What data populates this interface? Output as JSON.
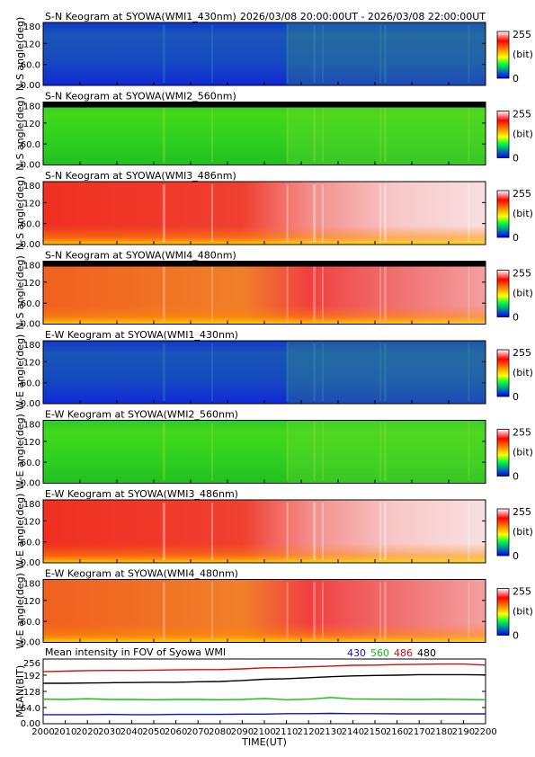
{
  "header": {
    "time_range": "2026/03/08 20:00:00UT - 2026/03/08 22:00:00UT"
  },
  "colorbar": {
    "max_label": "255",
    "unit_label": "(bit)",
    "min_label": "0"
  },
  "chart_data": [
    {
      "type": "heatmap",
      "title": "S-N Keogram at SYOWA(WMI1_430nm)",
      "ylabel": "N-S angle(deg)",
      "ylim": [
        0,
        180
      ],
      "yticks": [
        "180",
        "120",
        "60.0",
        "0.00"
      ],
      "base": "blue",
      "colormap": "rainbow",
      "vmin": 0,
      "vmax": 255
    },
    {
      "type": "heatmap",
      "title": "S-N Keogram at SYOWA(WMI2_560nm)",
      "ylabel": "N-S angle(deg)",
      "ylim": [
        0,
        180
      ],
      "yticks": [
        "180",
        "120",
        "60.0",
        "0.00"
      ],
      "base": "green",
      "colormap": "rainbow",
      "vmin": 0,
      "vmax": 255
    },
    {
      "type": "heatmap",
      "title": "S-N Keogram at SYOWA(WMI3_486nm)",
      "ylabel": "N-S angle(deg)",
      "ylim": [
        0,
        180
      ],
      "yticks": [
        "180",
        "120",
        "60.0",
        "0.00"
      ],
      "base": "red-white",
      "colormap": "rainbow",
      "vmin": 0,
      "vmax": 255
    },
    {
      "type": "heatmap",
      "title": "S-N Keogram at SYOWA(WMI4_480nm)",
      "ylabel": "N-S angle(deg)",
      "ylim": [
        0,
        180
      ],
      "yticks": [
        "180",
        "120",
        "60.0",
        "0.00"
      ],
      "base": "red-orange",
      "colormap": "rainbow",
      "vmin": 0,
      "vmax": 255
    },
    {
      "type": "heatmap",
      "title": "E-W Keogram at SYOWA(WMI1_430nm)",
      "ylabel": "W-E angle(deg)",
      "ylim": [
        0,
        180
      ],
      "yticks": [
        "180",
        "120",
        "60.0",
        "0.00"
      ],
      "base": "blue",
      "colormap": "rainbow",
      "vmin": 0,
      "vmax": 255
    },
    {
      "type": "heatmap",
      "title": "E-W Keogram at SYOWA(WMI2_560nm)",
      "ylabel": "W-E angle(deg)",
      "ylim": [
        0,
        180
      ],
      "yticks": [
        "180",
        "120",
        "60.0",
        "0.00"
      ],
      "base": "green",
      "colormap": "rainbow",
      "vmin": 0,
      "vmax": 255
    },
    {
      "type": "heatmap",
      "title": "E-W Keogram at SYOWA(WMI3_486nm)",
      "ylabel": "W-E angle(deg)",
      "ylim": [
        0,
        180
      ],
      "yticks": [
        "180",
        "120",
        "60.0",
        "0.00"
      ],
      "base": "red-white",
      "colormap": "rainbow",
      "vmin": 0,
      "vmax": 255
    },
    {
      "type": "heatmap",
      "title": "E-W Keogram at SYOWA(WMI4_480nm)",
      "ylabel": "W-E angle(deg)",
      "ylim": [
        0,
        180
      ],
      "yticks": [
        "180",
        "120",
        "60.0",
        "0.00"
      ],
      "base": "red-orange",
      "colormap": "rainbow",
      "vmin": 0,
      "vmax": 255
    },
    {
      "type": "line",
      "title": "Mean intensity in FOV of Syowa WMI",
      "xlabel": "TIME(UT)",
      "ylabel": "MEAN(BIT)",
      "ylim": [
        0,
        256
      ],
      "yticks": [
        "256",
        "192",
        "128",
        "64.0",
        "0.00"
      ],
      "x": [
        2000,
        2010,
        2020,
        2030,
        2040,
        2050,
        2060,
        2070,
        2080,
        2090,
        2100,
        2110,
        2120,
        2130,
        2140,
        2150,
        2160,
        2170,
        2180,
        2190,
        2200
      ],
      "xtick_labels": [
        "2000",
        "2010",
        "2020",
        "2030",
        "2040",
        "2050",
        "2060",
        "2070",
        "2080",
        "2090",
        "2100",
        "2110",
        "2120",
        "2130",
        "2140",
        "2150",
        "2160",
        "2170",
        "2180",
        "2190",
        "2200"
      ],
      "series": [
        {
          "name": "430",
          "color": "#1010d0",
          "values": [
            36,
            36,
            36,
            37,
            36,
            36,
            37,
            37,
            37,
            38,
            38,
            40,
            40,
            41,
            40,
            40,
            39,
            39,
            39,
            39,
            39
          ]
        },
        {
          "name": "560",
          "color": "#10c010",
          "values": [
            97,
            96,
            99,
            96,
            96,
            95,
            96,
            96,
            95,
            96,
            100,
            95,
            97,
            104,
            98,
            97,
            97,
            96,
            97,
            96,
            95
          ]
        },
        {
          "name": "486",
          "color": "#d01010",
          "values": [
            206,
            208,
            210,
            211,
            211,
            212,
            213,
            214,
            214,
            217,
            221,
            222,
            225,
            228,
            231,
            232,
            234,
            235,
            236,
            236,
            232
          ]
        },
        {
          "name": "480",
          "color": "#000000",
          "values": [
            160,
            160,
            161,
            162,
            163,
            164,
            164,
            166,
            167,
            171,
            176,
            178,
            182,
            186,
            189,
            191,
            192,
            194,
            194,
            194,
            193
          ]
        }
      ]
    }
  ]
}
